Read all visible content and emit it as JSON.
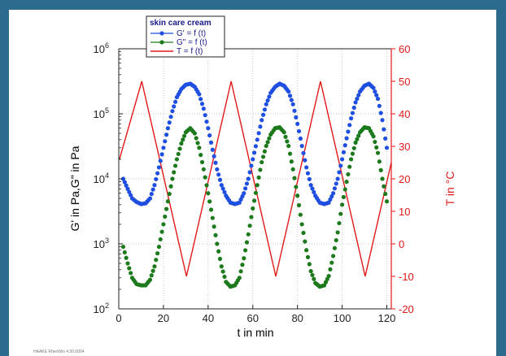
{
  "colors": {
    "page_background": "#2a6b8e",
    "gprime": "#1f4fe0",
    "gdouble": "#1c7a1c",
    "temperature": "#e01818"
  },
  "footer": {
    "note": "HAAKE RheoWin 4.50.0004"
  },
  "chart_data": {
    "type": "line",
    "legend": {
      "title": "skin care cream",
      "entries": [
        "G' = f (t)",
        "G\" = f (t)",
        "T = f (t)"
      ],
      "placement": "top-left"
    },
    "xlabel": "t in min",
    "ylabel_left": "G' in Pa,G\" in Pa",
    "ylabel_right": "T in °C",
    "xlim": [
      0,
      122
    ],
    "xticks": [
      0,
      20,
      40,
      60,
      80,
      100,
      120
    ],
    "xtick_labels": [
      "0",
      "20",
      "40",
      "60",
      "80",
      "100",
      "120"
    ],
    "ylim_left": [
      100,
      1000000
    ],
    "y_left_scale": "log",
    "yticks_left": [
      100,
      1000,
      10000,
      100000,
      1000000
    ],
    "ytick_labels_left": [
      "10^2",
      "10^3",
      "10^4",
      "10^5",
      "10^6"
    ],
    "ylim_right": [
      -20,
      60
    ],
    "yticks_right": [
      -20,
      -10,
      0,
      10,
      20,
      30,
      40,
      50,
      60
    ],
    "ytick_labels_right": [
      "-20",
      "-10",
      "0",
      "10",
      "20",
      "30",
      "40",
      "50",
      "60"
    ],
    "grid": true,
    "series": [
      {
        "name": "G' = f (t)",
        "axis": "left",
        "style": "markers",
        "x": [
          2,
          4,
          6,
          8,
          10,
          12,
          14,
          16,
          18,
          20,
          22,
          24,
          26,
          28,
          30,
          32,
          34,
          36,
          38,
          40,
          42,
          44,
          46,
          48,
          50,
          52,
          54,
          56,
          58,
          60,
          62,
          64,
          66,
          68,
          70,
          72,
          74,
          76,
          78,
          80,
          82,
          84,
          86,
          88,
          90,
          92,
          94,
          96,
          98,
          100,
          102,
          104,
          106,
          108,
          110,
          112,
          114,
          116,
          118,
          120
        ],
        "y": [
          10000,
          7000,
          5000,
          4400,
          4100,
          4200,
          5000,
          8000,
          15000,
          30000,
          60000,
          110000,
          180000,
          240000,
          280000,
          290000,
          260000,
          200000,
          120000,
          60000,
          28000,
          14000,
          8000,
          5500,
          4300,
          4100,
          4300,
          6000,
          10000,
          20000,
          40000,
          80000,
          140000,
          210000,
          260000,
          290000,
          270000,
          220000,
          140000,
          70000,
          32000,
          15000,
          8000,
          5500,
          4300,
          4100,
          4300,
          6000,
          10000,
          20000,
          42000,
          85000,
          150000,
          220000,
          270000,
          290000,
          250000,
          170000,
          80000,
          30000
        ]
      },
      {
        "name": "G\" = f (t)",
        "axis": "left",
        "style": "markers",
        "x": [
          2,
          4,
          6,
          8,
          10,
          12,
          14,
          16,
          18,
          20,
          22,
          24,
          26,
          28,
          30,
          32,
          34,
          36,
          38,
          40,
          42,
          44,
          46,
          48,
          50,
          52,
          54,
          56,
          58,
          60,
          62,
          64,
          66,
          68,
          70,
          72,
          74,
          76,
          78,
          80,
          82,
          84,
          86,
          88,
          90,
          92,
          94,
          96,
          98,
          100,
          102,
          104,
          106,
          108,
          110,
          112,
          114,
          116,
          118,
          120
        ],
        "y": [
          900,
          500,
          300,
          240,
          230,
          230,
          280,
          450,
          900,
          2000,
          4500,
          10000,
          20000,
          35000,
          52000,
          60000,
          50000,
          30000,
          14000,
          6000,
          2500,
          1000,
          450,
          260,
          220,
          230,
          300,
          600,
          1400,
          3500,
          8000,
          18000,
          32000,
          48000,
          60000,
          62000,
          52000,
          32000,
          14000,
          5500,
          2000,
          800,
          380,
          250,
          220,
          230,
          320,
          650,
          1500,
          4000,
          9000,
          20000,
          36000,
          52000,
          62000,
          60000,
          45000,
          25000,
          10000,
          4500
        ]
      },
      {
        "name": "T = f (t)",
        "axis": "right",
        "style": "line",
        "x": [
          0.3,
          10.3,
          30.3,
          50.3,
          70.3,
          90.3,
          110.3,
          122
        ],
        "y": [
          26,
          50,
          -10,
          50,
          -10,
          50,
          -10,
          25
        ]
      }
    ]
  }
}
